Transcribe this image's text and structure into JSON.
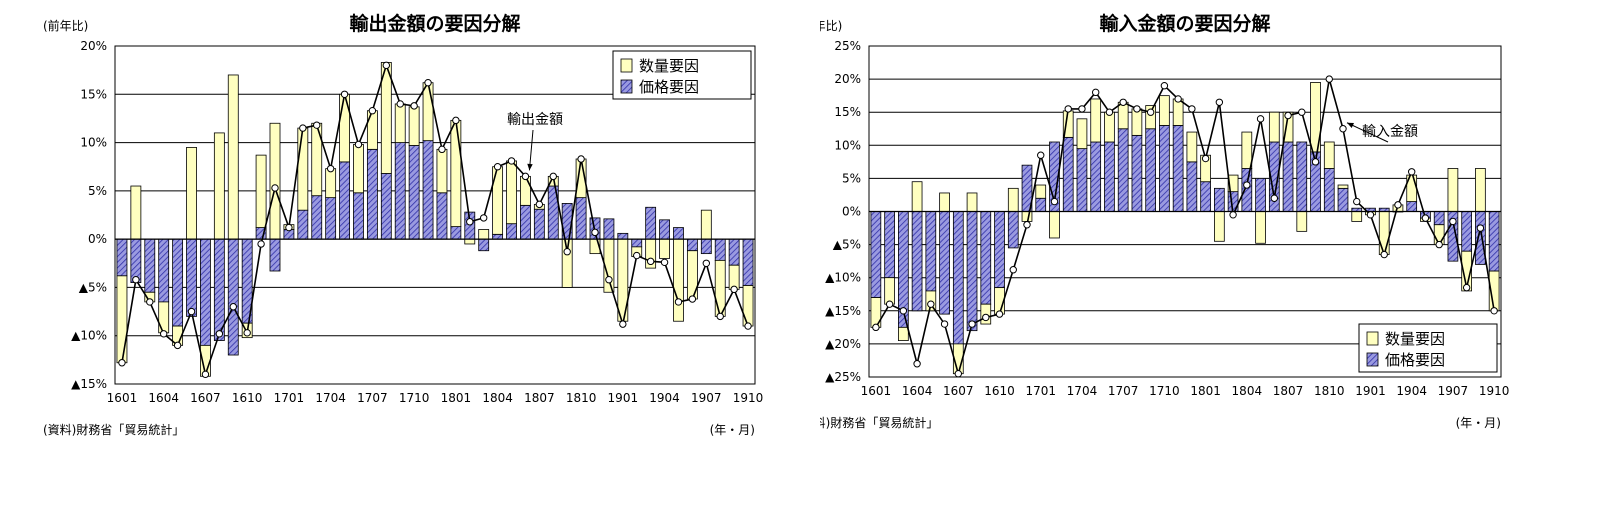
{
  "chart_data": [
    {
      "type": "bar",
      "title": "輸出金額の要因分解",
      "ylabel": "(前年比)",
      "source": "(資料)財務省「貿易統計」",
      "xunit": "(年・月)",
      "ylim": [
        -15,
        20
      ],
      "yticks": [
        20,
        15,
        10,
        5,
        0,
        -5,
        -10,
        -15
      ],
      "ytick_labels": [
        "20%",
        "15%",
        "10%",
        "5%",
        "0%",
        "▲5%",
        "▲10%",
        "▲15%"
      ],
      "xtick_labels": [
        "1601",
        "1604",
        "1607",
        "1610",
        "1701",
        "1704",
        "1707",
        "1710",
        "1801",
        "1804",
        "1807",
        "1810",
        "1901",
        "1904",
        "1907",
        "1910"
      ],
      "grid": true,
      "legend_placement": "top-right",
      "legend": [
        "数量要因",
        "価格要因"
      ],
      "annotation": "輸出金額",
      "categories": [
        "1601",
        "1602",
        "1603",
        "1604",
        "1605",
        "1606",
        "1607",
        "1608",
        "1609",
        "1610",
        "1611",
        "1612",
        "1701",
        "1702",
        "1703",
        "1704",
        "1705",
        "1706",
        "1707",
        "1708",
        "1709",
        "1710",
        "1711",
        "1712",
        "1801",
        "1802",
        "1803",
        "1804",
        "1805",
        "1806",
        "1807",
        "1808",
        "1809",
        "1810",
        "1811",
        "1812",
        "1901",
        "1902",
        "1903",
        "1904",
        "1905",
        "1906",
        "1907",
        "1908",
        "1909",
        "1910"
      ],
      "series": [
        {
          "name": "数量要因",
          "values": [
            -9,
            5.5,
            -1,
            -3.2,
            -2,
            9.5,
            -3.2,
            11,
            17,
            -1.5,
            7.5,
            12,
            0.5,
            8.5,
            7.5,
            3,
            7,
            5,
            4,
            11.5,
            4,
            4,
            6,
            4.5,
            11,
            -0.5,
            1,
            7,
            6.5,
            3,
            0.5,
            1,
            -5,
            4,
            -1.5,
            -5.5,
            -8.5,
            -1,
            -3,
            -2,
            -8.5,
            -5,
            3,
            -5.8,
            -2.5,
            -4.2
          ]
        },
        {
          "name": "価格要因",
          "values": [
            -3.8,
            -4.5,
            -5.5,
            -6.5,
            -9,
            -8,
            -11,
            -10.5,
            -12,
            -8.7,
            1.2,
            -3.3,
            1,
            3,
            4.5,
            4.3,
            8,
            4.8,
            9.3,
            6.8,
            10,
            9.7,
            10.2,
            4.8,
            1.3,
            2.8,
            -1.2,
            0.5,
            1.6,
            3.5,
            3.1,
            5.5,
            3.7,
            4.3,
            2.2,
            2.1,
            0.6,
            -0.8,
            3.3,
            2,
            1.2,
            -1.2,
            -1.5,
            -2.2,
            -2.7,
            -4.8
          ]
        },
        {
          "name": "輸出金額",
          "values": [
            -12.8,
            -4.2,
            -6.5,
            -9.8,
            -11,
            -7.5,
            -14,
            -9.8,
            -7,
            -9.7,
            -0.5,
            5.3,
            1.2,
            11.5,
            11.8,
            7.3,
            15,
            9.8,
            13.3,
            18,
            14,
            13.8,
            16.2,
            9.3,
            12.3,
            1.8,
            2.2,
            7.5,
            8.1,
            6.5,
            3.6,
            6.5,
            -1.3,
            8.3,
            0.7,
            -4.2,
            -8.8,
            -1.7,
            -2.3,
            -2.4,
            -6.5,
            -6.2,
            -2.5,
            -8,
            -5.2,
            -9
          ]
        }
      ]
    },
    {
      "type": "bar",
      "title": "輸入金額の要因分解",
      "ylabel": "(前年比)",
      "source": "(資料)財務省「貿易統計」",
      "xunit": "(年・月)",
      "ylim": [
        -25,
        25
      ],
      "yticks": [
        25,
        20,
        15,
        10,
        5,
        0,
        -5,
        -10,
        -15,
        -20,
        -25
      ],
      "ytick_labels": [
        "25%",
        "20%",
        "15%",
        "10%",
        "5%",
        "0%",
        "▲5%",
        "▲10%",
        "▲15%",
        "▲20%",
        "▲25%"
      ],
      "xtick_labels": [
        "1601",
        "1604",
        "1607",
        "1610",
        "1701",
        "1704",
        "1707",
        "1710",
        "1801",
        "1804",
        "1807",
        "1810",
        "1901",
        "1904",
        "1907",
        "1910"
      ],
      "grid": true,
      "legend_placement": "bottom-right",
      "legend": [
        "数量要因",
        "価格要因"
      ],
      "annotation": "輸入金額",
      "categories": [
        "1601",
        "1602",
        "1603",
        "1604",
        "1605",
        "1606",
        "1607",
        "1608",
        "1609",
        "1610",
        "1611",
        "1612",
        "1701",
        "1702",
        "1703",
        "1704",
        "1705",
        "1706",
        "1707",
        "1708",
        "1709",
        "1710",
        "1711",
        "1712",
        "1801",
        "1802",
        "1803",
        "1804",
        "1805",
        "1806",
        "1807",
        "1808",
        "1809",
        "1810",
        "1811",
        "1812",
        "1901",
        "1902",
        "1903",
        "1904",
        "1905",
        "1906",
        "1907",
        "1908",
        "1909",
        "1910"
      ],
      "series": [
        {
          "name": "数量要因",
          "values": [
            -4.5,
            -4,
            -2,
            4.5,
            -3,
            2.8,
            -4.5,
            2.8,
            -3,
            -4,
            3.5,
            -1.5,
            2,
            -4,
            4,
            4.5,
            6.5,
            4.5,
            4,
            4,
            3.5,
            4.5,
            4,
            4.5,
            4,
            -4.5,
            2.5,
            5.5,
            -4.8,
            4.5,
            4.5,
            -3,
            10.5,
            4,
            0.5,
            -1.5,
            -0.5,
            -6.5,
            1,
            4,
            -0.5,
            -3,
            6.5,
            -6,
            6.5,
            -6
          ]
        },
        {
          "name": "価格要因",
          "values": [
            -13,
            -10,
            -17.5,
            -15,
            -12,
            -15.5,
            -20,
            -18,
            -14,
            -11.5,
            -5.5,
            7,
            2,
            10.5,
            11.2,
            9.5,
            10.5,
            10.5,
            12.5,
            11.5,
            12.5,
            13,
            13,
            7.5,
            4.5,
            3.5,
            3,
            6.5,
            5,
            10.5,
            10.5,
            10.5,
            9,
            6.5,
            3.5,
            0.5,
            0.5,
            0.5,
            0,
            1.5,
            -1,
            -2,
            -7.5,
            -6,
            -8,
            -9
          ]
        },
        {
          "name": "輸入金額",
          "values": [
            -17.5,
            -14,
            -15,
            -23,
            -14,
            -17,
            -24.5,
            -17,
            -16,
            -15.5,
            -8.8,
            -2,
            8.5,
            1.5,
            15.5,
            15.5,
            18,
            15,
            16.5,
            15.5,
            15,
            19,
            17,
            15.5,
            8,
            16.5,
            -0.5,
            4,
            14,
            2,
            14.5,
            15,
            7.5,
            20,
            12.5,
            1.5,
            -0.5,
            -6.5,
            1,
            6,
            -1,
            -5,
            -1.5,
            -11.5,
            -2.5,
            -15
          ]
        }
      ]
    }
  ]
}
